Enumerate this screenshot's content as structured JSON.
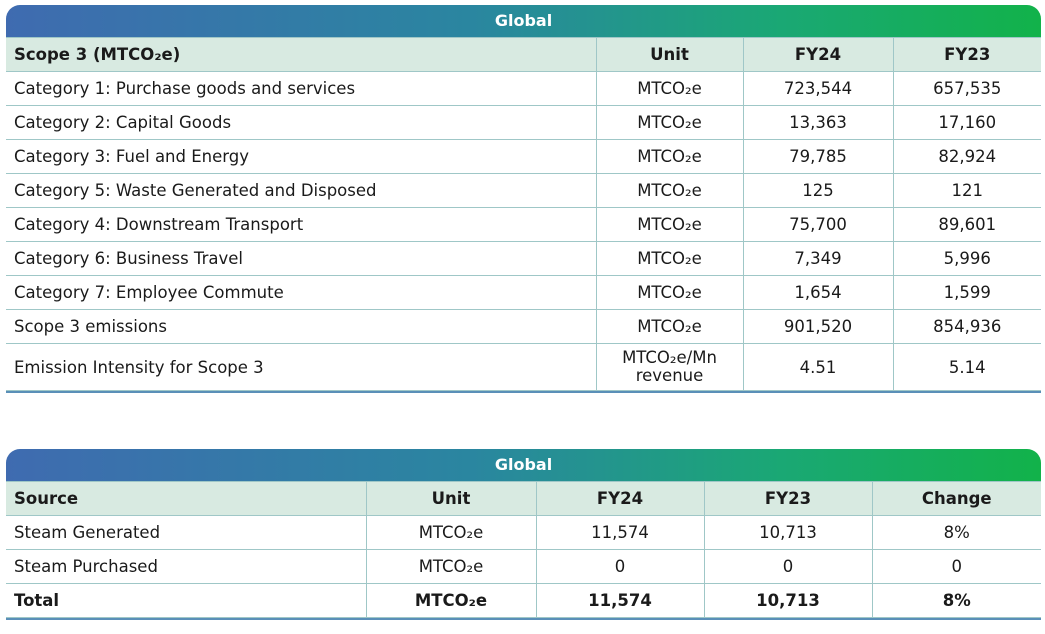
{
  "table1": {
    "title": "Global",
    "headers": [
      "Scope 3 (MTCO₂e)",
      "Unit",
      "FY24",
      "FY23"
    ],
    "rows": [
      [
        "Category 1: Purchase goods and services",
        "MTCO₂e",
        "723,544",
        "657,535"
      ],
      [
        "Category 2: Capital Goods",
        "MTCO₂e",
        "13,363",
        "17,160"
      ],
      [
        "Category 3: Fuel and Energy",
        "MTCO₂e",
        "79,785",
        "82,924"
      ],
      [
        "Category 5: Waste Generated and Disposed",
        "MTCO₂e",
        "125",
        "121"
      ],
      [
        "Category 4: Downstream Transport",
        "MTCO₂e",
        "75,700",
        "89,601"
      ],
      [
        "Category 6: Business Travel",
        "MTCO₂e",
        "7,349",
        "5,996"
      ],
      [
        "Category 7: Employee Commute",
        "MTCO₂e",
        "1,654",
        "1,599"
      ],
      [
        "Scope 3 emissions",
        "MTCO₂e",
        "901,520",
        "854,936"
      ],
      [
        "Emission Intensity for Scope 3",
        "MTCO₂e/Mn revenue",
        "4.51",
        "5.14"
      ]
    ]
  },
  "table2": {
    "title": "Global",
    "headers": [
      "Source",
      "Unit",
      "FY24",
      "FY23",
      "Change"
    ],
    "rows": [
      [
        "Steam Generated",
        "MTCO₂e",
        "11,574",
        "10,713",
        "8%"
      ],
      [
        "Steam Purchased",
        "MTCO₂e",
        "0",
        "0",
        "0"
      ]
    ],
    "total": [
      "Total",
      "MTCO₂e",
      "11,574",
      "10,713",
      "8%"
    ]
  }
}
